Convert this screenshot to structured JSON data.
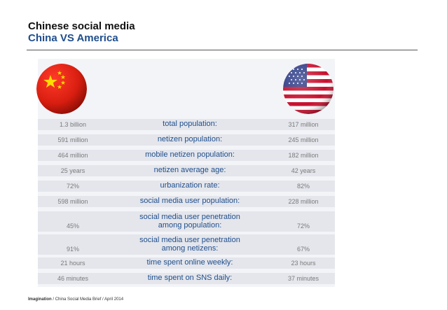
{
  "header": {
    "title": "Chinese social media",
    "subtitle": "China VS America"
  },
  "flags": {
    "left_icon": "china-flag-icon",
    "right_icon": "usa-flag-icon"
  },
  "comparison": [
    {
      "china": "1.3 billion",
      "metric": "total population:",
      "america": "317 million"
    },
    {
      "china": "591 million",
      "metric": "netizen population:",
      "america": "245 million"
    },
    {
      "china": "464 million",
      "metric": "mobile netizen population:",
      "america": "182 million"
    },
    {
      "china": "25 years",
      "metric": "netizen average age:",
      "america": "42 years"
    },
    {
      "china": "72%",
      "metric": "urbanization rate:",
      "america": "82%"
    },
    {
      "china": "598 million",
      "metric": "social media user population:",
      "america": "228 million"
    },
    {
      "china": "45%",
      "metric_line1": "social media user penetration",
      "metric_line2": "among population:",
      "america": "72%"
    },
    {
      "china": "91%",
      "metric_line1": "social media user penetration",
      "metric_line2": "among netizens:",
      "america": "67%"
    },
    {
      "china": "21 hours",
      "metric": "time spent online weekly:",
      "america": "23 hours"
    },
    {
      "china": "46 minutes",
      "metric": "time spent on SNS daily:",
      "america": "37 minutes"
    }
  ],
  "footer": {
    "brand": "Imagination",
    "separator": " / ",
    "text": "China Social Media Brief / April 2014"
  }
}
